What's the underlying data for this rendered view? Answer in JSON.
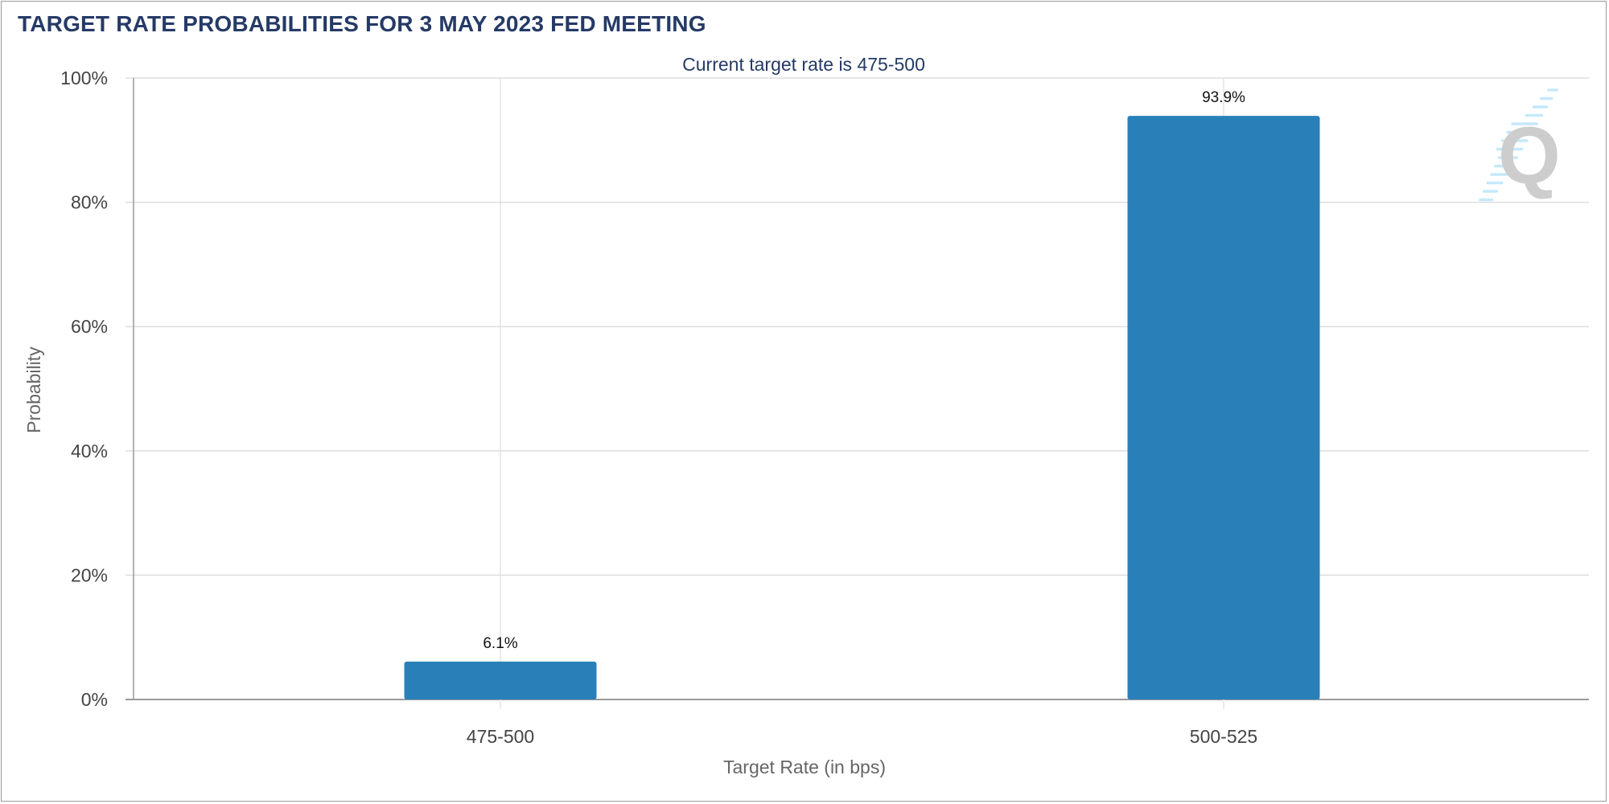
{
  "title": "TARGET RATE PROBABILITIES FOR 3 MAY 2023 FED MEETING",
  "subtitle": "Current target rate is 475-500",
  "colors": {
    "bar": "#2980b9",
    "title": "#253a66",
    "grid": "#dddddd"
  },
  "logo": {
    "text": "Q",
    "icon": "quikstrike-q-logo"
  },
  "chart_data": {
    "type": "bar",
    "title": "TARGET RATE PROBABILITIES FOR 3 MAY 2023 FED MEETING",
    "subtitle": "Current target rate is 475-500",
    "categories": [
      "475-500",
      "500-525"
    ],
    "values": [
      6.1,
      93.9
    ],
    "data_labels": [
      "6.1%",
      "93.9%"
    ],
    "xlabel": "Target Rate (in bps)",
    "ylabel": "Probability",
    "ylim": [
      0,
      100
    ],
    "yticks": [
      "0%",
      "20%",
      "40%",
      "60%",
      "80%",
      "100%"
    ],
    "grid": true,
    "legend": "none"
  }
}
